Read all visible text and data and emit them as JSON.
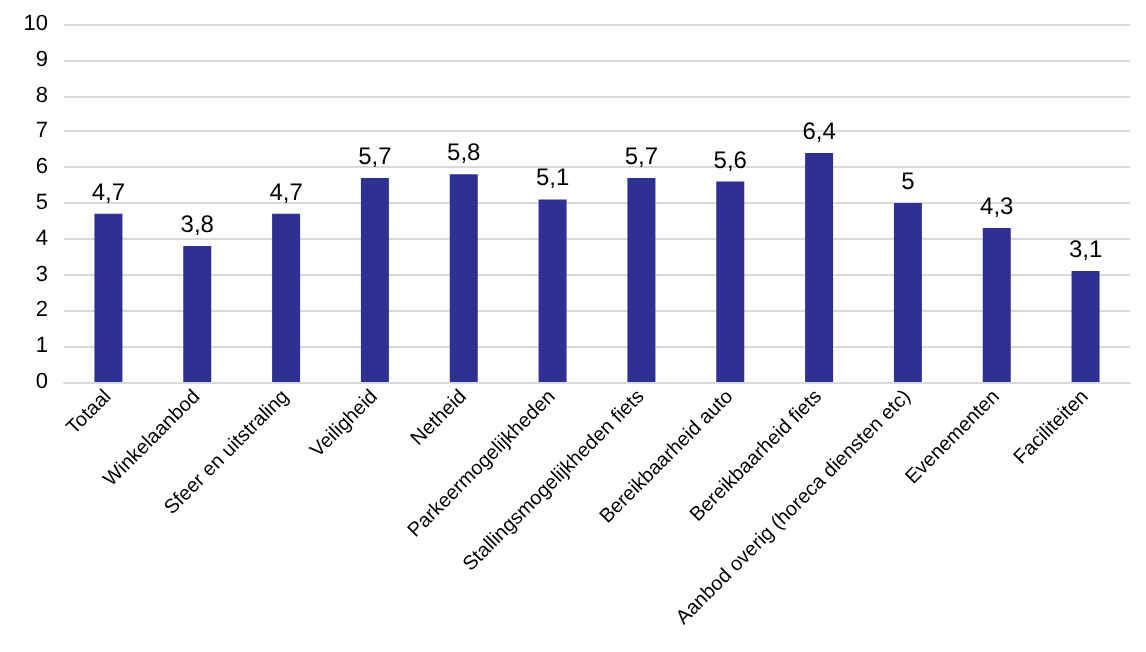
{
  "chart_data": {
    "type": "bar",
    "categories": [
      "Totaal",
      "Winkelaanbod",
      "Sfeer en uitstraling",
      "Veiligheid",
      "Netheid",
      "Parkeermogelijkheden",
      "Stallingsmogelijkheden fiets",
      "Bereikbaarheid auto",
      "Bereikbaarheid fiets",
      "Aanbod overig (horeca diensten etc)",
      "Evenementen",
      "Faciliteiten"
    ],
    "values": [
      4.7,
      3.8,
      4.7,
      5.7,
      5.8,
      5.1,
      5.7,
      5.6,
      6.4,
      5,
      4.3,
      3.1
    ],
    "value_labels": [
      "4,7",
      "3,8",
      "4,7",
      "5,7",
      "5,8",
      "5,1",
      "5,7",
      "5,6",
      "6,4",
      "5",
      "4,3",
      "3,1"
    ],
    "color": "#2e3192",
    "ylim": [
      0,
      10
    ],
    "yticks": [
      0,
      1,
      2,
      3,
      4,
      5,
      6,
      7,
      8,
      9,
      10
    ],
    "grid": "y"
  }
}
